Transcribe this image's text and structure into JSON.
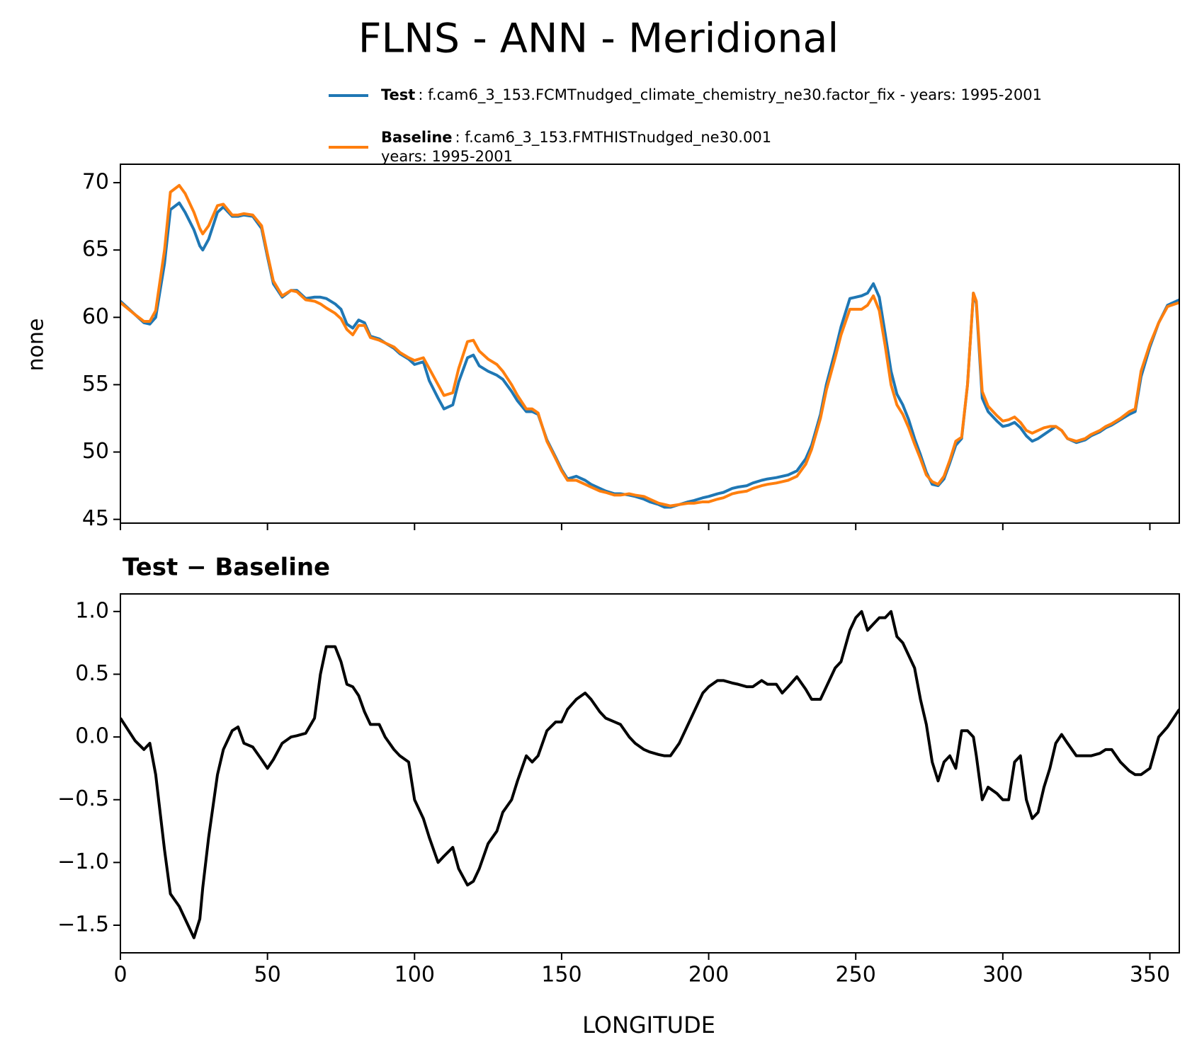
{
  "title": "FLNS - ANN - Meridional",
  "chart_data": [
    {
      "type": "line",
      "ylabel": "none",
      "x": [
        0,
        5,
        8,
        10,
        12,
        15,
        17,
        20,
        22,
        25,
        27,
        28,
        30,
        33,
        35,
        38,
        40,
        42,
        45,
        48,
        50,
        52,
        55,
        58,
        60,
        63,
        66,
        68,
        70,
        73,
        75,
        77,
        79,
        81,
        83,
        85,
        88,
        90,
        93,
        95,
        98,
        100,
        103,
        105,
        108,
        110,
        113,
        115,
        118,
        120,
        122,
        125,
        128,
        130,
        133,
        135,
        138,
        140,
        142,
        145,
        148,
        150,
        152,
        155,
        158,
        160,
        163,
        165,
        168,
        170,
        173,
        175,
        178,
        180,
        183,
        185,
        187,
        190,
        193,
        195,
        198,
        200,
        203,
        205,
        208,
        210,
        213,
        215,
        218,
        220,
        223,
        225,
        227,
        230,
        233,
        235,
        238,
        240,
        243,
        245,
        248,
        250,
        252,
        254,
        256,
        258,
        260,
        262,
        264,
        266,
        268,
        270,
        272,
        274,
        276,
        278,
        280,
        282,
        284,
        286,
        288,
        290,
        291,
        293,
        295,
        298,
        300,
        302,
        304,
        306,
        308,
        310,
        312,
        314,
        316,
        318,
        320,
        322,
        325,
        328,
        330,
        333,
        335,
        337,
        340,
        343,
        345,
        347,
        350,
        353,
        356,
        360
      ],
      "series": [
        {
          "name": "Test",
          "description": [
            ": f.cam6_3_153.FCMTnudged_climate_chemistry_ne30.factor_fix - years: 1995-2001"
          ],
          "color": "#1f77b4",
          "values": [
            61.2,
            60.2,
            59.6,
            59.5,
            60.0,
            64.0,
            68.0,
            68.5,
            67.8,
            66.5,
            65.3,
            65.0,
            65.8,
            67.8,
            68.2,
            67.5,
            67.5,
            67.6,
            67.5,
            66.6,
            64.5,
            62.5,
            61.5,
            62.0,
            62.0,
            61.4,
            61.5,
            61.5,
            61.4,
            61.0,
            60.6,
            59.5,
            59.2,
            59.8,
            59.6,
            58.6,
            58.4,
            58.1,
            57.7,
            57.3,
            56.9,
            56.5,
            56.7,
            55.3,
            54.0,
            53.2,
            53.5,
            55.2,
            57.0,
            57.2,
            56.4,
            56.0,
            55.7,
            55.4,
            54.5,
            53.8,
            53.0,
            53.0,
            52.8,
            50.9,
            49.6,
            48.7,
            48.0,
            48.2,
            47.9,
            47.6,
            47.3,
            47.1,
            46.9,
            46.9,
            46.8,
            46.7,
            46.5,
            46.3,
            46.1,
            45.9,
            45.9,
            46.1,
            46.3,
            46.4,
            46.6,
            46.7,
            46.9,
            47.0,
            47.3,
            47.4,
            47.5,
            47.7,
            47.9,
            48.0,
            48.1,
            48.2,
            48.3,
            48.6,
            49.5,
            50.5,
            52.8,
            55.0,
            57.5,
            59.3,
            61.4,
            61.5,
            61.6,
            61.8,
            62.5,
            61.5,
            58.8,
            56.0,
            54.3,
            53.5,
            52.4,
            51.0,
            49.8,
            48.5,
            47.6,
            47.5,
            48.0,
            49.2,
            50.5,
            51.0,
            55.0,
            61.8,
            61.0,
            54.0,
            53.0,
            52.3,
            51.9,
            52.0,
            52.2,
            51.8,
            51.2,
            50.8,
            51.0,
            51.3,
            51.6,
            51.9,
            51.6,
            51.0,
            50.7,
            50.9,
            51.2,
            51.5,
            51.8,
            52.0,
            52.4,
            52.8,
            53.0,
            55.6,
            57.8,
            59.6,
            60.9,
            61.3
          ]
        },
        {
          "name": "Baseline",
          "description": [
            ": f.cam6_3_153.FMTHISTnudged_ne30.001",
            "years: 1995-2001"
          ],
          "color": "#ff7f0e",
          "values": [
            61.1,
            60.2,
            59.7,
            59.7,
            60.5,
            65.0,
            69.3,
            69.8,
            69.2,
            67.8,
            66.6,
            66.2,
            66.8,
            68.3,
            68.4,
            67.6,
            67.6,
            67.7,
            67.6,
            66.8,
            64.7,
            62.7,
            61.6,
            62.0,
            61.9,
            61.3,
            61.2,
            61.0,
            60.7,
            60.3,
            59.9,
            59.1,
            58.7,
            59.4,
            59.4,
            58.5,
            58.3,
            58.1,
            57.8,
            57.4,
            57.0,
            56.8,
            57.0,
            56.2,
            55.0,
            54.2,
            54.4,
            56.2,
            58.2,
            58.3,
            57.5,
            56.9,
            56.5,
            56.0,
            55.0,
            54.2,
            53.2,
            53.2,
            52.9,
            50.8,
            49.5,
            48.6,
            47.9,
            47.9,
            47.6,
            47.4,
            47.1,
            47.0,
            46.8,
            46.8,
            46.9,
            46.8,
            46.7,
            46.5,
            46.2,
            46.1,
            46.0,
            46.1,
            46.2,
            46.2,
            46.3,
            46.3,
            46.5,
            46.6,
            46.9,
            47.0,
            47.1,
            47.3,
            47.5,
            47.6,
            47.7,
            47.8,
            47.9,
            48.2,
            49.1,
            50.2,
            52.5,
            54.6,
            57.0,
            58.7,
            60.6,
            60.6,
            60.6,
            60.9,
            61.6,
            60.5,
            57.9,
            55.0,
            53.5,
            52.8,
            51.8,
            50.6,
            49.5,
            48.3,
            47.8,
            47.6,
            48.2,
            49.4,
            50.8,
            51.1,
            55.0,
            61.8,
            61.2,
            54.5,
            53.4,
            52.7,
            52.3,
            52.4,
            52.6,
            52.2,
            51.6,
            51.4,
            51.6,
            51.8,
            51.9,
            51.9,
            51.6,
            51.0,
            50.8,
            51.0,
            51.3,
            51.6,
            51.9,
            52.1,
            52.5,
            53.0,
            53.2,
            56.0,
            58.0,
            59.6,
            60.8,
            61.1
          ]
        }
      ],
      "xlim": [
        0,
        360
      ],
      "xticks": [
        0,
        50,
        100,
        150,
        200,
        250,
        300,
        350
      ],
      "ylim": [
        44.72,
        71.37
      ],
      "yticks": [
        45,
        50,
        55,
        60,
        65,
        70
      ]
    },
    {
      "type": "line",
      "title": "Test − Baseline",
      "xlabel": "LONGITUDE",
      "x": [
        0,
        5,
        8,
        10,
        12,
        15,
        17,
        20,
        22,
        25,
        27,
        28,
        30,
        33,
        35,
        38,
        40,
        42,
        45,
        48,
        50,
        52,
        55,
        58,
        60,
        63,
        66,
        68,
        70,
        73,
        75,
        77,
        79,
        81,
        83,
        85,
        88,
        90,
        93,
        95,
        98,
        100,
        103,
        105,
        108,
        110,
        113,
        115,
        118,
        120,
        122,
        125,
        128,
        130,
        133,
        135,
        138,
        140,
        142,
        145,
        148,
        150,
        152,
        155,
        158,
        160,
        163,
        165,
        168,
        170,
        173,
        175,
        178,
        180,
        183,
        185,
        187,
        190,
        193,
        195,
        198,
        200,
        203,
        205,
        208,
        210,
        213,
        215,
        218,
        220,
        223,
        225,
        227,
        230,
        233,
        235,
        238,
        240,
        243,
        245,
        248,
        250,
        252,
        254,
        256,
        258,
        260,
        262,
        264,
        266,
        268,
        270,
        272,
        274,
        276,
        278,
        280,
        282,
        284,
        286,
        288,
        290,
        291,
        293,
        295,
        298,
        300,
        302,
        304,
        306,
        308,
        310,
        312,
        314,
        316,
        318,
        320,
        322,
        325,
        328,
        330,
        333,
        335,
        337,
        340,
        343,
        345,
        347,
        350,
        353,
        356,
        360
      ],
      "series": [
        {
          "color": "#000000",
          "values": [
            0.15,
            -0.03,
            -0.1,
            -0.05,
            -0.3,
            -0.9,
            -1.25,
            -1.35,
            -1.45,
            -1.6,
            -1.45,
            -1.2,
            -0.8,
            -0.3,
            -0.1,
            0.05,
            0.08,
            -0.05,
            -0.08,
            -0.18,
            -0.25,
            -0.18,
            -0.05,
            0.0,
            0.01,
            0.03,
            0.15,
            0.5,
            0.72,
            0.72,
            0.6,
            0.42,
            0.4,
            0.33,
            0.2,
            0.1,
            0.1,
            0.0,
            -0.1,
            -0.15,
            -0.2,
            -0.5,
            -0.65,
            -0.8,
            -1.0,
            -0.95,
            -0.88,
            -1.05,
            -1.18,
            -1.15,
            -1.05,
            -0.85,
            -0.75,
            -0.6,
            -0.5,
            -0.35,
            -0.15,
            -0.2,
            -0.15,
            0.05,
            0.12,
            0.12,
            0.22,
            0.3,
            0.35,
            0.3,
            0.2,
            0.15,
            0.12,
            0.1,
            0.0,
            -0.05,
            -0.1,
            -0.12,
            -0.14,
            -0.15,
            -0.15,
            -0.05,
            0.1,
            0.2,
            0.35,
            0.4,
            0.45,
            0.45,
            0.43,
            0.42,
            0.4,
            0.4,
            0.45,
            0.42,
            0.42,
            0.35,
            0.4,
            0.48,
            0.38,
            0.3,
            0.3,
            0.4,
            0.55,
            0.6,
            0.85,
            0.95,
            1.0,
            0.85,
            0.9,
            0.95,
            0.95,
            1.0,
            0.8,
            0.75,
            0.65,
            0.55,
            0.3,
            0.1,
            -0.2,
            -0.35,
            -0.2,
            -0.15,
            -0.25,
            0.05,
            0.05,
            0.0,
            -0.15,
            -0.5,
            -0.4,
            -0.45,
            -0.5,
            -0.5,
            -0.2,
            -0.15,
            -0.5,
            -0.65,
            -0.6,
            -0.4,
            -0.25,
            -0.05,
            0.02,
            -0.05,
            -0.15,
            -0.15,
            -0.15,
            -0.13,
            -0.1,
            -0.1,
            -0.2,
            -0.27,
            -0.3,
            -0.3,
            -0.25,
            0.0,
            0.08,
            0.22
          ]
        }
      ],
      "xlim": [
        0,
        360
      ],
      "xticks": [
        0,
        50,
        100,
        150,
        200,
        250,
        300,
        350
      ],
      "ylim": [
        -1.72,
        1.14
      ],
      "yticks": [
        {
          "value": -1.5,
          "label": "−1.5"
        },
        {
          "value": -1,
          "label": "−1.0"
        },
        {
          "value": -0.5,
          "label": "−0.5"
        },
        {
          "value": 0,
          "label": "0.0"
        },
        0.5,
        {
          "value": 1,
          "label": "1.0"
        }
      ]
    }
  ]
}
